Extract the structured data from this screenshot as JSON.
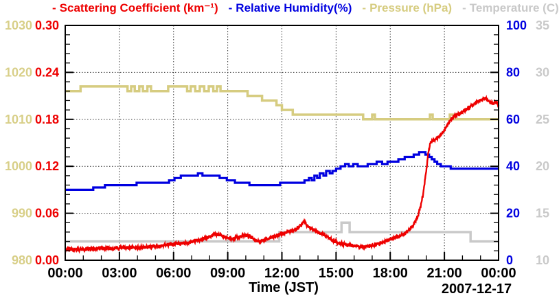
{
  "chart_data": {
    "type": "line",
    "xlabel": "Time (JST)",
    "date_label": "2007-12-17",
    "x_axis": {
      "min": 0,
      "max": 24,
      "major_step": 3,
      "minor_step": 1,
      "labels": [
        "00:00",
        "03:00",
        "06:00",
        "09:00",
        "12:00",
        "15:00",
        "18:00",
        "21:00",
        "00:00"
      ]
    },
    "y_axes": [
      {
        "id": "pressure",
        "title": "Pressure (hPa)",
        "side": "left-outer",
        "color": "#d6cc80",
        "label_color": "#d8cf88",
        "min": 980,
        "max": 1030,
        "major_step": 10,
        "minor_step": 2,
        "labels": [
          "980",
          "990",
          "1000",
          "1010",
          "1020",
          "1030"
        ]
      },
      {
        "id": "scattering",
        "title": "Scattering Coefficient (km⁻¹)",
        "side": "left-inner",
        "color": "#ee0000",
        "label_color": "#ee0000",
        "min": 0,
        "max": 0.3,
        "major_step": 0.06,
        "minor_step": 0.012,
        "labels": [
          "0.00",
          "0.06",
          "0.12",
          "0.18",
          "0.24",
          "0.30"
        ]
      },
      {
        "id": "humidity",
        "title": "Relative Humidity(%)",
        "side": "right-inner",
        "color": "#0000e0",
        "label_color": "#0000e0",
        "min": 0,
        "max": 100,
        "major_step": 20,
        "minor_step": 4,
        "labels": [
          "0",
          "20",
          "40",
          "60",
          "80",
          "100"
        ]
      },
      {
        "id": "temperature",
        "title": "Temperature (C)",
        "side": "right-outer",
        "color": "#c9c9c9",
        "label_color": "#c9c9c9",
        "min": 10,
        "max": 35,
        "major_step": 5,
        "minor_step": 1,
        "labels": [
          "10",
          "15",
          "20",
          "25",
          "30",
          "35"
        ]
      }
    ],
    "legend": [
      {
        "marker": "-",
        "label": "Scattering Coefficient (km⁻¹)",
        "color": "#ee0000"
      },
      {
        "marker": "-",
        "label": "Relative Humidity(%)",
        "color": "#0000e0"
      },
      {
        "marker": "-",
        "label": "Pressure (hPa)",
        "color": "#d6cc80"
      },
      {
        "marker": "-",
        "label": "Temperature (C)",
        "color": "#c9c9c9"
      }
    ],
    "grid": {
      "style": "dotted",
      "at": "major-ticks"
    },
    "series": [
      {
        "name": "Temperature (C)",
        "axis": "temperature",
        "color": "#c9c9c9",
        "style": "step",
        "width": 3.5,
        "points": [
          [
            0,
            12
          ],
          [
            11.85,
            13
          ],
          [
            15.3,
            14
          ],
          [
            15.75,
            13
          ],
          [
            22.45,
            12
          ],
          [
            24,
            12
          ]
        ]
      },
      {
        "name": "Pressure (hPa)",
        "axis": "pressure",
        "color": "#d6cc80",
        "style": "step",
        "width": 3.5,
        "points": [
          [
            0,
            1016
          ],
          [
            0.85,
            1017
          ],
          [
            3.45,
            1016
          ],
          [
            3.65,
            1017
          ],
          [
            3.85,
            1016
          ],
          [
            4.1,
            1017
          ],
          [
            4.3,
            1016
          ],
          [
            4.55,
            1017
          ],
          [
            4.75,
            1016
          ],
          [
            5.7,
            1017
          ],
          [
            6.75,
            1016
          ],
          [
            6.95,
            1017
          ],
          [
            7.2,
            1016
          ],
          [
            7.45,
            1017
          ],
          [
            7.7,
            1016
          ],
          [
            7.95,
            1017
          ],
          [
            8.2,
            1016
          ],
          [
            8.4,
            1017
          ],
          [
            8.6,
            1016
          ],
          [
            10.1,
            1015
          ],
          [
            10.9,
            1014
          ],
          [
            11.7,
            1013
          ],
          [
            12.0,
            1012
          ],
          [
            12.6,
            1011
          ],
          [
            16.5,
            1010
          ],
          [
            17.0,
            1011
          ],
          [
            17.15,
            1010
          ],
          [
            20.2,
            1011
          ],
          [
            20.35,
            1010
          ],
          [
            21.3,
            1011
          ],
          [
            21.55,
            1010
          ],
          [
            24,
            1010
          ]
        ]
      },
      {
        "name": "Relative Humidity(%)",
        "axis": "humidity",
        "color": "#0000e0",
        "style": "step",
        "width": 3.2,
        "points": [
          [
            0,
            30
          ],
          [
            1.55,
            31
          ],
          [
            2.2,
            32
          ],
          [
            3.95,
            33
          ],
          [
            5.75,
            34
          ],
          [
            6.05,
            35
          ],
          [
            6.4,
            36
          ],
          [
            7.35,
            37
          ],
          [
            7.6,
            36
          ],
          [
            8.55,
            35
          ],
          [
            8.95,
            34
          ],
          [
            9.4,
            33
          ],
          [
            10.2,
            32
          ],
          [
            11.9,
            33
          ],
          [
            13.25,
            34
          ],
          [
            13.5,
            35
          ],
          [
            13.65,
            34
          ],
          [
            13.8,
            36
          ],
          [
            13.95,
            35
          ],
          [
            14.1,
            37
          ],
          [
            14.3,
            36
          ],
          [
            14.45,
            38
          ],
          [
            14.65,
            37
          ],
          [
            14.8,
            38
          ],
          [
            15.0,
            39
          ],
          [
            15.25,
            40
          ],
          [
            15.5,
            41
          ],
          [
            15.7,
            40
          ],
          [
            15.95,
            41
          ],
          [
            16.2,
            40
          ],
          [
            16.75,
            41
          ],
          [
            17.25,
            42
          ],
          [
            17.55,
            41
          ],
          [
            17.85,
            42
          ],
          [
            18.45,
            43
          ],
          [
            18.8,
            44
          ],
          [
            19.3,
            45
          ],
          [
            19.6,
            46
          ],
          [
            19.95,
            45
          ],
          [
            20.15,
            44
          ],
          [
            20.3,
            43
          ],
          [
            20.45,
            42
          ],
          [
            20.6,
            41
          ],
          [
            20.8,
            40
          ],
          [
            21.35,
            39
          ],
          [
            24,
            39
          ]
        ]
      },
      {
        "name": "Scattering Coefficient (km⁻¹)",
        "axis": "scattering",
        "color": "#ee0000",
        "style": "noisy",
        "width": 2.4,
        "noise": 0.0022,
        "points": [
          [
            0,
            0.014
          ],
          [
            0.5,
            0.0135
          ],
          [
            1,
            0.014
          ],
          [
            1.5,
            0.0145
          ],
          [
            2,
            0.015
          ],
          [
            2.5,
            0.015
          ],
          [
            3,
            0.0155
          ],
          [
            3.5,
            0.016
          ],
          [
            4,
            0.016
          ],
          [
            4.5,
            0.017
          ],
          [
            5,
            0.0175
          ],
          [
            5.5,
            0.019
          ],
          [
            6,
            0.021
          ],
          [
            6.3,
            0.0215
          ],
          [
            6.7,
            0.022
          ],
          [
            7,
            0.0235
          ],
          [
            7.3,
            0.025
          ],
          [
            7.6,
            0.027
          ],
          [
            8,
            0.03
          ],
          [
            8.3,
            0.033
          ],
          [
            8.5,
            0.0325
          ],
          [
            8.8,
            0.03
          ],
          [
            9.1,
            0.028
          ],
          [
            9.4,
            0.028
          ],
          [
            9.7,
            0.03
          ],
          [
            10,
            0.032
          ],
          [
            10.2,
            0.031
          ],
          [
            10.5,
            0.026
          ],
          [
            10.8,
            0.024
          ],
          [
            11.1,
            0.026
          ],
          [
            11.5,
            0.03
          ],
          [
            12,
            0.034
          ],
          [
            12.3,
            0.036
          ],
          [
            12.6,
            0.038
          ],
          [
            12.9,
            0.041
          ],
          [
            13.1,
            0.046
          ],
          [
            13.2,
            0.05
          ],
          [
            13.35,
            0.046
          ],
          [
            13.5,
            0.042
          ],
          [
            13.7,
            0.04
          ],
          [
            14,
            0.036
          ],
          [
            14.3,
            0.033
          ],
          [
            14.6,
            0.028
          ],
          [
            14.9,
            0.024
          ],
          [
            15.2,
            0.022
          ],
          [
            15.5,
            0.02
          ],
          [
            15.8,
            0.019
          ],
          [
            16.1,
            0.018
          ],
          [
            16.4,
            0.017
          ],
          [
            16.7,
            0.017
          ],
          [
            17,
            0.019
          ],
          [
            17.3,
            0.021
          ],
          [
            17.6,
            0.023
          ],
          [
            18,
            0.027
          ],
          [
            18.4,
            0.03
          ],
          [
            18.7,
            0.033
          ],
          [
            19,
            0.037
          ],
          [
            19.2,
            0.042
          ],
          [
            19.4,
            0.05
          ],
          [
            19.55,
            0.058
          ],
          [
            19.7,
            0.07
          ],
          [
            19.8,
            0.082
          ],
          [
            19.9,
            0.098
          ],
          [
            20,
            0.115
          ],
          [
            20.1,
            0.135
          ],
          [
            20.2,
            0.148
          ],
          [
            20.35,
            0.153
          ],
          [
            20.5,
            0.155
          ],
          [
            20.7,
            0.158
          ],
          [
            20.9,
            0.163
          ],
          [
            21.1,
            0.17
          ],
          [
            21.3,
            0.178
          ],
          [
            21.5,
            0.183
          ],
          [
            21.7,
            0.186
          ],
          [
            21.9,
            0.188
          ],
          [
            22.1,
            0.191
          ],
          [
            22.3,
            0.194
          ],
          [
            22.5,
            0.197
          ],
          [
            22.7,
            0.201
          ],
          [
            22.9,
            0.204
          ],
          [
            23.1,
            0.206
          ],
          [
            23.3,
            0.207
          ],
          [
            23.5,
            0.202
          ],
          [
            23.7,
            0.2
          ],
          [
            23.85,
            0.203
          ],
          [
            24,
            0.196
          ]
        ]
      }
    ]
  }
}
